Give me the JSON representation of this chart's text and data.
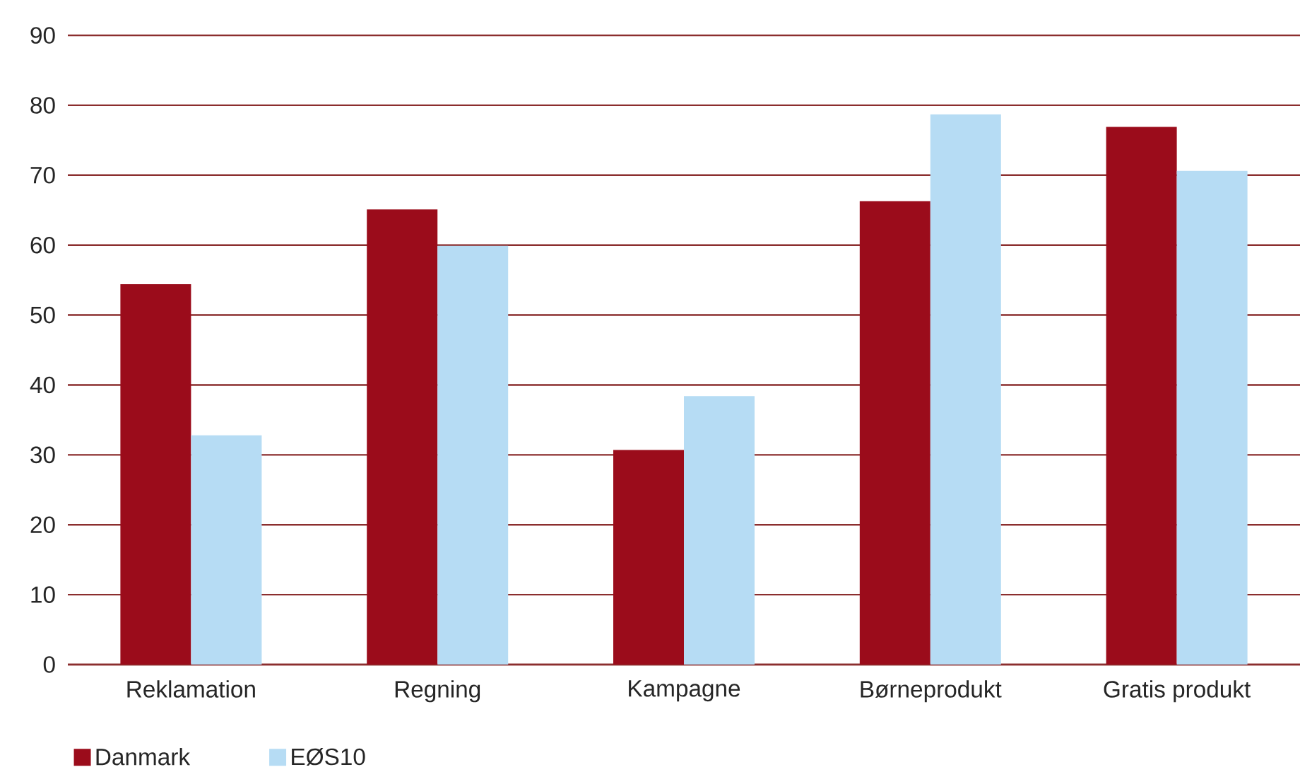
{
  "chart_data": {
    "type": "bar",
    "categories": [
      "Reklamation",
      "Regning",
      "Kampagne",
      "Børneprodukt",
      "Gratis produkt"
    ],
    "series": [
      {
        "name": "Danmark",
        "color": "#9b0c1b",
        "values": [
          54.4,
          65.1,
          30.7,
          66.3,
          76.9
        ]
      },
      {
        "name": "EØS10",
        "color": "#b6dcf4",
        "values": [
          32.8,
          59.9,
          38.4,
          78.7,
          70.6
        ]
      }
    ],
    "ylim": [
      0,
      90
    ],
    "yticks": [
      0,
      10,
      20,
      30,
      40,
      50,
      60,
      70,
      80,
      90
    ],
    "grid": "y",
    "legend": "bottom left"
  }
}
